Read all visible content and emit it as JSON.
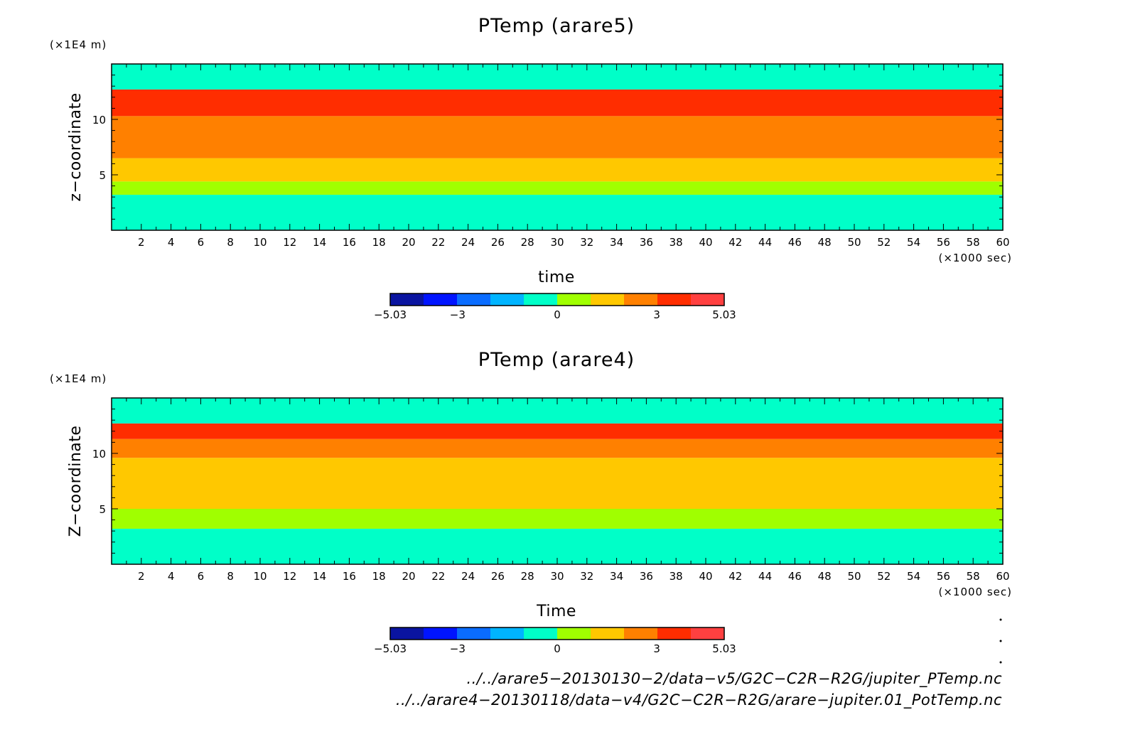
{
  "colors": {
    "levels": [
      "#0a14a0",
      "#0014ff",
      "#0a6cff",
      "#00b4ff",
      "#00ffc8",
      "#a0ff00",
      "#ffc800",
      "#ff8000",
      "#ff2d00",
      "#ff4040"
    ]
  },
  "chart_data": [
    {
      "type": "heatmap",
      "title": "PTemp (arare5)",
      "xlabel": "time",
      "ylabel": "z−coordinate",
      "x_unit": "(×1000 sec)",
      "y_unit": "(×1E4 m)",
      "xlim": [
        0,
        60
      ],
      "ylim": [
        0,
        15
      ],
      "x_ticks": [
        "2",
        "4",
        "6",
        "8",
        "10",
        "12",
        "14",
        "16",
        "18",
        "20",
        "22",
        "24",
        "26",
        "28",
        "30",
        "32",
        "34",
        "36",
        "38",
        "40",
        "42",
        "44",
        "46",
        "48",
        "50",
        "52",
        "54",
        "56",
        "58",
        "60"
      ],
      "y_ticks": [
        "5",
        "10"
      ],
      "colorbar": {
        "min": -5.03,
        "max": 5.03,
        "tick_labels": [
          "−5.03",
          "−3",
          "0",
          "3",
          "5.03"
        ]
      },
      "bands": [
        {
          "z": [
            0.0,
            3.2
          ],
          "level": 4
        },
        {
          "z": [
            3.2,
            4.4
          ],
          "level": 5
        },
        {
          "z": [
            4.4,
            6.5
          ],
          "level": 6
        },
        {
          "z": [
            6.5,
            10.3
          ],
          "level": 7
        },
        {
          "z": [
            10.3,
            12.7
          ],
          "level": 8
        },
        {
          "z": [
            12.7,
            15.0
          ],
          "level": 4
        }
      ]
    },
    {
      "type": "heatmap",
      "title": "PTemp (arare4)",
      "xlabel": "Time",
      "ylabel": "Z−coordinate",
      "x_unit": "(×1000 sec)",
      "y_unit": "(×1E4 m)",
      "xlim": [
        0,
        60
      ],
      "ylim": [
        0,
        15
      ],
      "x_ticks": [
        "2",
        "4",
        "6",
        "8",
        "10",
        "12",
        "14",
        "16",
        "18",
        "20",
        "22",
        "24",
        "26",
        "28",
        "30",
        "32",
        "34",
        "36",
        "38",
        "40",
        "42",
        "44",
        "46",
        "48",
        "50",
        "52",
        "54",
        "56",
        "58",
        "60"
      ],
      "y_ticks": [
        "5",
        "10"
      ],
      "colorbar": {
        "min": -5.03,
        "max": 5.03,
        "tick_labels": [
          "−5.03",
          "−3",
          "0",
          "3",
          "5.03"
        ]
      },
      "bands": [
        {
          "z": [
            0.0,
            3.2
          ],
          "level": 4
        },
        {
          "z": [
            3.2,
            5.0
          ],
          "level": 5
        },
        {
          "z": [
            5.0,
            9.6
          ],
          "level": 6
        },
        {
          "z": [
            9.6,
            11.3
          ],
          "level": 7
        },
        {
          "z": [
            11.3,
            12.7
          ],
          "level": 8
        },
        {
          "z": [
            12.7,
            15.0
          ],
          "level": 4
        }
      ]
    }
  ],
  "footer": {
    "file1": "../../arare5−20130130−2/data−v5/G2C−C2R−R2G/jupiter_PTemp.nc",
    "file2": "../../arare4−20130118/data−v4/G2C−C2R−R2G/arare−jupiter.01_PotTemp.nc"
  }
}
